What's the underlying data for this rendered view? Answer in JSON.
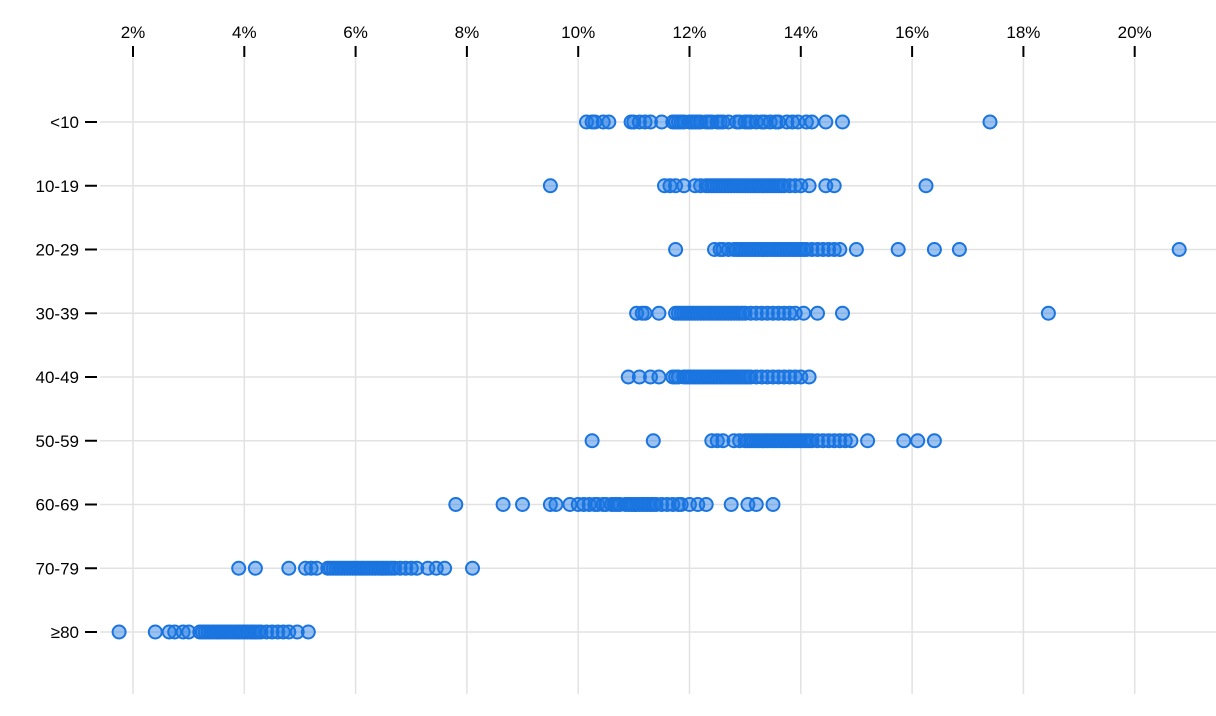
{
  "chart_data": {
    "type": "scatter",
    "subtype": "horizontal-strip-plot",
    "title": "",
    "xlabel": "",
    "ylabel": "",
    "x_unit": "%",
    "xlim": [
      1.4,
      21.5
    ],
    "grid": true,
    "legend": false,
    "x_ticks": [
      {
        "value": 2,
        "label": "2%"
      },
      {
        "value": 4,
        "label": "4%"
      },
      {
        "value": 6,
        "label": "6%"
      },
      {
        "value": 8,
        "label": "8%"
      },
      {
        "value": 10,
        "label": "10%"
      },
      {
        "value": 12,
        "label": "12%"
      },
      {
        "value": 14,
        "label": "14%"
      },
      {
        "value": 16,
        "label": "16%"
      },
      {
        "value": 18,
        "label": "18%"
      },
      {
        "value": 20,
        "label": "20%"
      }
    ],
    "categories": [
      "<10",
      "10-19",
      "20-29",
      "30-39",
      "40-49",
      "50-59",
      "60-69",
      "70-79",
      "≥80"
    ],
    "series": [
      {
        "name": "<10",
        "values": [
          10.15,
          10.25,
          10.3,
          10.45,
          10.55,
          10.95,
          11.0,
          11.1,
          11.2,
          11.3,
          11.5,
          11.7,
          11.75,
          11.8,
          11.85,
          11.9,
          12.0,
          12.05,
          12.1,
          12.15,
          12.2,
          12.3,
          12.35,
          12.4,
          12.5,
          12.55,
          12.6,
          12.7,
          12.85,
          12.9,
          13.0,
          13.05,
          13.1,
          13.2,
          13.3,
          13.35,
          13.45,
          13.55,
          13.6,
          13.75,
          13.85,
          13.95,
          14.1,
          14.2,
          14.45,
          14.75,
          17.4
        ]
      },
      {
        "name": "10-19",
        "values": [
          9.5,
          11.55,
          11.65,
          11.75,
          11.9,
          12.1,
          12.2,
          12.3,
          12.35,
          12.4,
          12.45,
          12.5,
          12.55,
          12.6,
          12.65,
          12.7,
          12.75,
          12.8,
          12.85,
          12.9,
          12.95,
          13.0,
          13.05,
          13.1,
          13.15,
          13.2,
          13.25,
          13.3,
          13.35,
          13.4,
          13.45,
          13.5,
          13.55,
          13.6,
          13.65,
          13.7,
          13.8,
          13.9,
          14.0,
          14.15,
          14.45,
          14.6,
          16.25
        ]
      },
      {
        "name": "20-29",
        "values": [
          11.75,
          12.45,
          12.55,
          12.6,
          12.7,
          12.8,
          12.85,
          12.9,
          12.95,
          13.0,
          13.05,
          13.1,
          13.15,
          13.2,
          13.25,
          13.3,
          13.35,
          13.4,
          13.45,
          13.5,
          13.55,
          13.6,
          13.65,
          13.7,
          13.75,
          13.8,
          13.85,
          13.9,
          13.95,
          14.0,
          14.05,
          14.1,
          14.2,
          14.3,
          14.4,
          14.5,
          14.6,
          14.7,
          15.0,
          15.75,
          16.4,
          16.85,
          20.8
        ]
      },
      {
        "name": "30-39",
        "values": [
          11.05,
          11.15,
          11.2,
          11.45,
          11.75,
          11.8,
          11.85,
          11.9,
          11.95,
          12.0,
          12.05,
          12.1,
          12.15,
          12.2,
          12.25,
          12.3,
          12.35,
          12.4,
          12.45,
          12.5,
          12.55,
          12.6,
          12.65,
          12.7,
          12.75,
          12.8,
          12.85,
          12.9,
          12.95,
          13.0,
          13.1,
          13.2,
          13.3,
          13.4,
          13.5,
          13.6,
          13.7,
          13.8,
          13.9,
          14.05,
          14.3,
          14.75,
          18.45
        ]
      },
      {
        "name": "40-49",
        "values": [
          10.9,
          11.1,
          11.3,
          11.45,
          11.7,
          11.75,
          11.8,
          11.9,
          11.95,
          12.0,
          12.05,
          12.1,
          12.15,
          12.2,
          12.25,
          12.3,
          12.35,
          12.4,
          12.45,
          12.5,
          12.55,
          12.6,
          12.65,
          12.7,
          12.75,
          12.8,
          12.85,
          12.9,
          12.95,
          13.0,
          13.05,
          13.1,
          13.2,
          13.3,
          13.4,
          13.5,
          13.6,
          13.7,
          13.8,
          13.9,
          14.0,
          14.15
        ]
      },
      {
        "name": "50-59",
        "values": [
          10.25,
          11.35,
          12.4,
          12.5,
          12.6,
          12.8,
          12.9,
          13.0,
          13.05,
          13.1,
          13.15,
          13.2,
          13.25,
          13.3,
          13.35,
          13.4,
          13.45,
          13.5,
          13.55,
          13.6,
          13.65,
          13.7,
          13.75,
          13.8,
          13.85,
          13.9,
          13.95,
          14.0,
          14.05,
          14.1,
          14.15,
          14.2,
          14.3,
          14.4,
          14.5,
          14.6,
          14.7,
          14.8,
          14.9,
          15.2,
          15.85,
          16.1,
          16.4
        ]
      },
      {
        "name": "60-69",
        "values": [
          7.8,
          8.65,
          9.0,
          9.5,
          9.6,
          9.85,
          10.0,
          10.1,
          10.2,
          10.3,
          10.35,
          10.45,
          10.5,
          10.6,
          10.65,
          10.7,
          10.75,
          10.85,
          10.9,
          10.95,
          11.0,
          11.05,
          11.1,
          11.15,
          11.2,
          11.25,
          11.3,
          11.35,
          11.4,
          11.5,
          11.6,
          11.7,
          11.8,
          11.85,
          12.0,
          12.15,
          12.3,
          12.75,
          13.05,
          13.2,
          13.5
        ]
      },
      {
        "name": "70-79",
        "values": [
          3.9,
          4.2,
          4.8,
          5.1,
          5.2,
          5.3,
          5.5,
          5.55,
          5.6,
          5.65,
          5.7,
          5.75,
          5.8,
          5.85,
          5.9,
          5.95,
          6.0,
          6.05,
          6.1,
          6.15,
          6.2,
          6.25,
          6.3,
          6.35,
          6.4,
          6.45,
          6.5,
          6.55,
          6.6,
          6.65,
          6.7,
          6.8,
          6.9,
          7.0,
          7.1,
          7.3,
          7.45,
          7.6,
          8.1
        ]
      },
      {
        "name": "≥80",
        "values": [
          1.75,
          2.4,
          2.65,
          2.75,
          2.9,
          3.0,
          3.2,
          3.25,
          3.3,
          3.35,
          3.4,
          3.45,
          3.5,
          3.55,
          3.6,
          3.65,
          3.7,
          3.75,
          3.8,
          3.85,
          3.9,
          3.95,
          4.0,
          4.05,
          4.1,
          4.15,
          4.2,
          4.25,
          4.3,
          4.4,
          4.5,
          4.6,
          4.7,
          4.8,
          4.95,
          5.15
        ]
      }
    ],
    "style": {
      "dot_fill": "#1e7be4",
      "dot_fill_opacity": 0.45,
      "dot_stroke": "#1a74df",
      "gridline_color": "#e2e2e2",
      "tick_color": "#000000",
      "label_color": "#000000"
    }
  }
}
